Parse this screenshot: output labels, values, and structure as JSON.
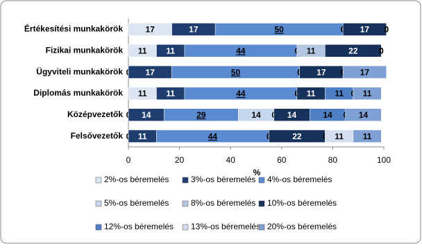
{
  "chart_data": {
    "type": "stacked-bar-horizontal",
    "categories": [
      "Értékesítési munkakörök",
      "Fizikai munkakörök",
      "Ügyviteli munkakörök",
      "Diplomás munkakörök",
      "Középvezetők",
      "Felsővezetők"
    ],
    "series": [
      {
        "name": "2%-os béremelés",
        "color": "#dce6f2",
        "values": [
          17,
          11,
          0,
          11,
          0,
          0
        ]
      },
      {
        "name": "3%-os béremelés",
        "color": "#1f3d6e",
        "values": [
          17,
          11,
          17,
          11,
          14,
          11
        ]
      },
      {
        "name": "4%-os béremelés",
        "color": "#5a8ad0",
        "values": [
          50,
          44,
          50,
          44,
          29,
          44
        ]
      },
      {
        "name": "5%-os béremelés",
        "color": "#c6d6ec",
        "values": [
          0,
          0,
          0,
          0,
          14,
          0
        ]
      },
      {
        "name": "8%-os béremelés",
        "color": "#b4c7e2",
        "values": [
          0,
          11,
          0,
          0,
          0,
          0
        ]
      },
      {
        "name": "10%-os béremelés",
        "color": "#17325a",
        "values": [
          17,
          22,
          17,
          11,
          14,
          22
        ]
      },
      {
        "name": "12%-os béremelés",
        "color": "#4e7fc4",
        "values": [
          0,
          0,
          0,
          11,
          14,
          0
        ]
      },
      {
        "name": "13%-os béremelés",
        "color": "#d3dff0",
        "values": [
          0,
          0,
          0,
          0,
          0,
          11
        ]
      },
      {
        "name": "20%-os béremelés",
        "color": "#7ea0d4",
        "values": [
          0,
          0,
          17,
          11,
          14,
          11
        ]
      }
    ],
    "x_label": "%",
    "xlim": [
      0,
      100
    ],
    "xticks": [
      0,
      20,
      40,
      60,
      80,
      100
    ]
  }
}
